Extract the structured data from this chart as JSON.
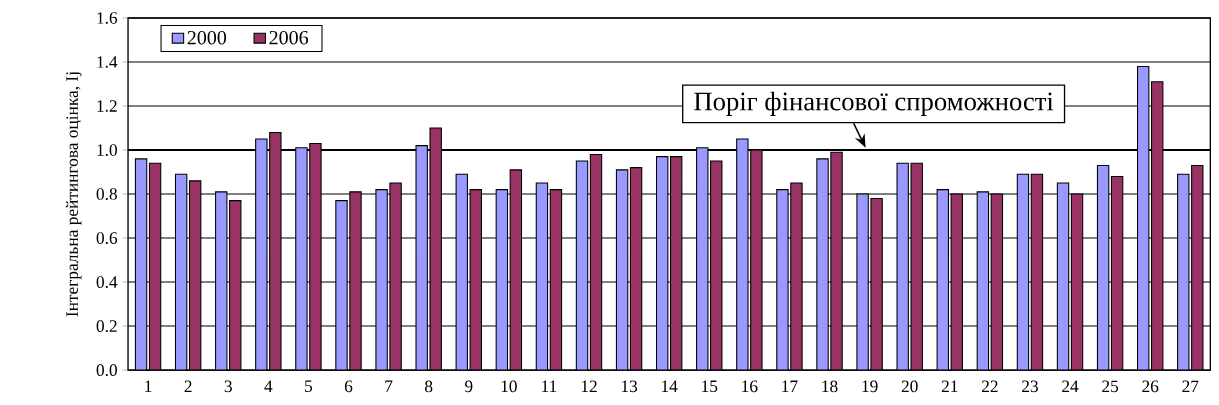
{
  "chart_data": {
    "type": "bar",
    "ylabel": "Інтегральна рейтингова оцінка, Іj",
    "categories": [
      "1",
      "2",
      "3",
      "4",
      "5",
      "6",
      "7",
      "8",
      "9",
      "10",
      "11",
      "12",
      "13",
      "14",
      "15",
      "16",
      "17",
      "18",
      "19",
      "20",
      "21",
      "22",
      "23",
      "24",
      "25",
      "26",
      "27"
    ],
    "series": [
      {
        "name": "2000",
        "color": "#9999ff",
        "values": [
          0.96,
          0.89,
          0.81,
          1.05,
          1.01,
          0.77,
          0.82,
          1.02,
          0.89,
          0.82,
          0.85,
          0.95,
          0.91,
          0.97,
          1.01,
          1.05,
          0.82,
          0.96,
          0.8,
          0.94,
          0.82,
          0.81,
          0.89,
          0.85,
          0.93,
          1.38,
          0.89
        ]
      },
      {
        "name": "2006",
        "color": "#993366",
        "values": [
          0.94,
          0.86,
          0.77,
          1.08,
          1.03,
          0.81,
          0.85,
          1.1,
          0.82,
          0.91,
          0.82,
          0.98,
          0.92,
          0.97,
          0.95,
          1.0,
          0.85,
          0.99,
          0.78,
          0.94,
          0.8,
          0.8,
          0.89,
          0.8,
          0.88,
          1.31,
          0.93
        ]
      }
    ],
    "ylim": [
      0,
      1.6
    ],
    "yticks": [
      {
        "value": 0,
        "label": "0.0"
      },
      {
        "value": 0.2,
        "label": "0.2"
      },
      {
        "value": 0.4,
        "label": "0.4"
      },
      {
        "value": 0.6,
        "label": "0.6"
      },
      {
        "value": 0.8,
        "label": "0.8"
      },
      {
        "value": 1.0,
        "label": "1.0"
      },
      {
        "value": 1.2,
        "label": "1.2"
      },
      {
        "value": 1.4,
        "label": "1.4"
      },
      {
        "value": 1.6,
        "label": "1.6"
      }
    ],
    "ref_lines": [
      {
        "axis": "y",
        "value": 1.0,
        "label": "Поріг фінансової спроможності",
        "color": "#000000"
      }
    ],
    "grid": "y",
    "legend": "top left"
  }
}
